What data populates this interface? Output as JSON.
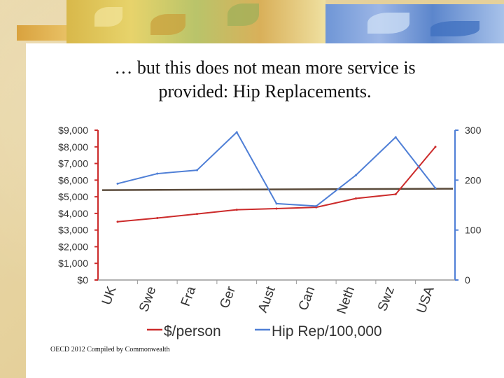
{
  "slide": {
    "title_line1": "… but this does not mean more service is",
    "title_line2": "provided: Hip Replacements.",
    "source_note": "OECD 2012 Compiled by Commonwealth"
  },
  "chart_data": {
    "type": "line",
    "categories": [
      "UK",
      "Swe",
      "Fra",
      "Ger",
      "Aust",
      "Can",
      "Neth",
      "Swz",
      "USA"
    ],
    "series": [
      {
        "name": "$/person",
        "axis": "left",
        "color": "#cc2b2b",
        "values": [
          3500,
          3720,
          3970,
          4220,
          4290,
          4370,
          4900,
          5150,
          8000
        ]
      },
      {
        "name": "Hip Rep/100,000",
        "axis": "right",
        "color": "#4f7fd6",
        "values": [
          193,
          213,
          220,
          296,
          153,
          148,
          210,
          286,
          184
        ]
      }
    ],
    "reference_line": {
      "axis": "right",
      "value": 180,
      "color": "#5a4a3a"
    },
    "y_left": {
      "min": 0,
      "max": 9000,
      "ticks": [
        "$0",
        "$1,000",
        "$2,000",
        "$3,000",
        "$4,000",
        "$5,000",
        "$6,000",
        "$7,000",
        "$8,000",
        "$9,000"
      ]
    },
    "y_right": {
      "min": 0,
      "max": 300,
      "ticks": [
        "0",
        "100",
        "200",
        "300"
      ]
    },
    "legend": [
      "$/person",
      "Hip Rep/100,000"
    ],
    "legend_position": "bottom",
    "colors": {
      "left_axis": "#cc2b2b",
      "right_axis": "#4f7fd6",
      "tick_text": "#333333"
    }
  }
}
